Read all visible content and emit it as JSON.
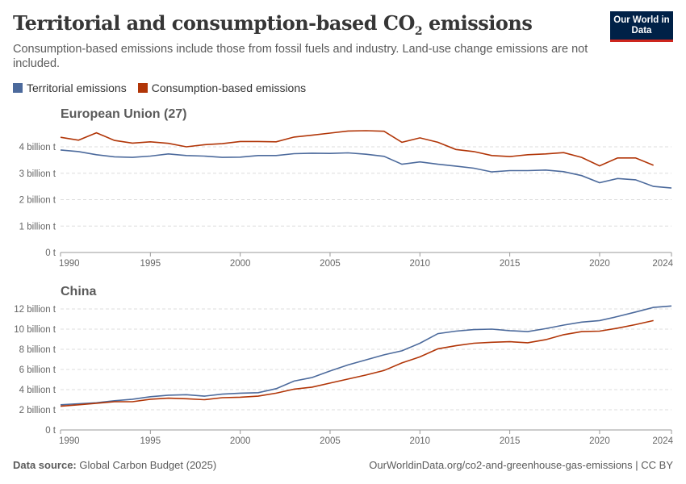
{
  "header": {
    "title": "Territorial and consumption-based CO",
    "title_sub": "2",
    "title_end": " emissions",
    "subtitle": "Consumption-based emissions include those from fossil fuels and industry. Land-use change emissions are not included.",
    "logo": "Our World in Data"
  },
  "colors": {
    "territorial": "#4c6a9c",
    "consumption": "#b13507"
  },
  "legend": [
    {
      "label": "Territorial emissions"
    },
    {
      "label": "Consumption-based emissions"
    }
  ],
  "chart_data": [
    {
      "type": "line",
      "title": "European Union (27)",
      "ylim": [
        0,
        4.7
      ],
      "yticks": [
        0,
        1,
        2,
        3,
        4
      ],
      "ytick_labels": [
        "0 t",
        "1 billion t",
        "2 billion t",
        "3 billion t",
        "4 billion t"
      ],
      "xticks": [
        1990,
        1995,
        2000,
        2005,
        2010,
        2015,
        2020,
        2024
      ],
      "grid": true,
      "series": [
        {
          "name": "Territorial emissions",
          "x_start": 1990,
          "values": [
            3.88,
            3.82,
            3.7,
            3.62,
            3.6,
            3.65,
            3.73,
            3.67,
            3.65,
            3.6,
            3.61,
            3.67,
            3.67,
            3.74,
            3.76,
            3.75,
            3.77,
            3.72,
            3.64,
            3.34,
            3.43,
            3.34,
            3.27,
            3.19,
            3.05,
            3.1,
            3.1,
            3.12,
            3.06,
            2.91,
            2.64,
            2.8,
            2.75,
            2.5,
            2.44
          ]
        },
        {
          "name": "Consumption-based emissions",
          "x_start": 1990,
          "values": [
            4.36,
            4.25,
            4.53,
            4.24,
            4.14,
            4.19,
            4.13,
            4.0,
            4.08,
            4.12,
            4.2,
            4.2,
            4.19,
            4.37,
            4.44,
            4.52,
            4.6,
            4.61,
            4.59,
            4.17,
            4.34,
            4.17,
            3.9,
            3.82,
            3.67,
            3.63,
            3.7,
            3.73,
            3.78,
            3.6,
            3.28,
            3.58,
            3.58,
            3.3
          ]
        }
      ]
    },
    {
      "type": "line",
      "title": "China",
      "ylim": [
        0,
        12.2
      ],
      "yticks": [
        0,
        2,
        4,
        6,
        8,
        10,
        12
      ],
      "ytick_labels": [
        "0 t",
        "2 billion t",
        "4 billion t",
        "6 billion t",
        "8 billion t",
        "10 billion t",
        "12 billion t"
      ],
      "xticks": [
        1990,
        1995,
        2000,
        2005,
        2010,
        2015,
        2020,
        2024
      ],
      "grid": true,
      "series": [
        {
          "name": "Territorial emissions",
          "x_start": 1990,
          "values": [
            2.5,
            2.6,
            2.7,
            2.9,
            3.05,
            3.3,
            3.45,
            3.5,
            3.35,
            3.55,
            3.65,
            3.7,
            4.1,
            4.85,
            5.2,
            5.85,
            6.45,
            6.95,
            7.45,
            7.85,
            8.6,
            9.55,
            9.8,
            9.95,
            10.0,
            9.85,
            9.75,
            10.05,
            10.4,
            10.7,
            10.85,
            11.25,
            11.7,
            12.15,
            12.3
          ]
        },
        {
          "name": "Consumption-based emissions",
          "x_start": 1990,
          "values": [
            2.35,
            2.5,
            2.65,
            2.8,
            2.8,
            3.05,
            3.15,
            3.1,
            3.0,
            3.2,
            3.25,
            3.35,
            3.65,
            4.05,
            4.25,
            4.65,
            5.05,
            5.45,
            5.9,
            6.65,
            7.25,
            8.05,
            8.35,
            8.6,
            8.7,
            8.75,
            8.65,
            8.95,
            9.45,
            9.75,
            9.8,
            10.1,
            10.45,
            10.85
          ]
        }
      ]
    }
  ],
  "footer": {
    "source_label": "Data source:",
    "source": " Global Carbon Budget (2025)",
    "url": "OurWorldinData.org/co2-and-greenhouse-gas-emissions | CC BY"
  }
}
